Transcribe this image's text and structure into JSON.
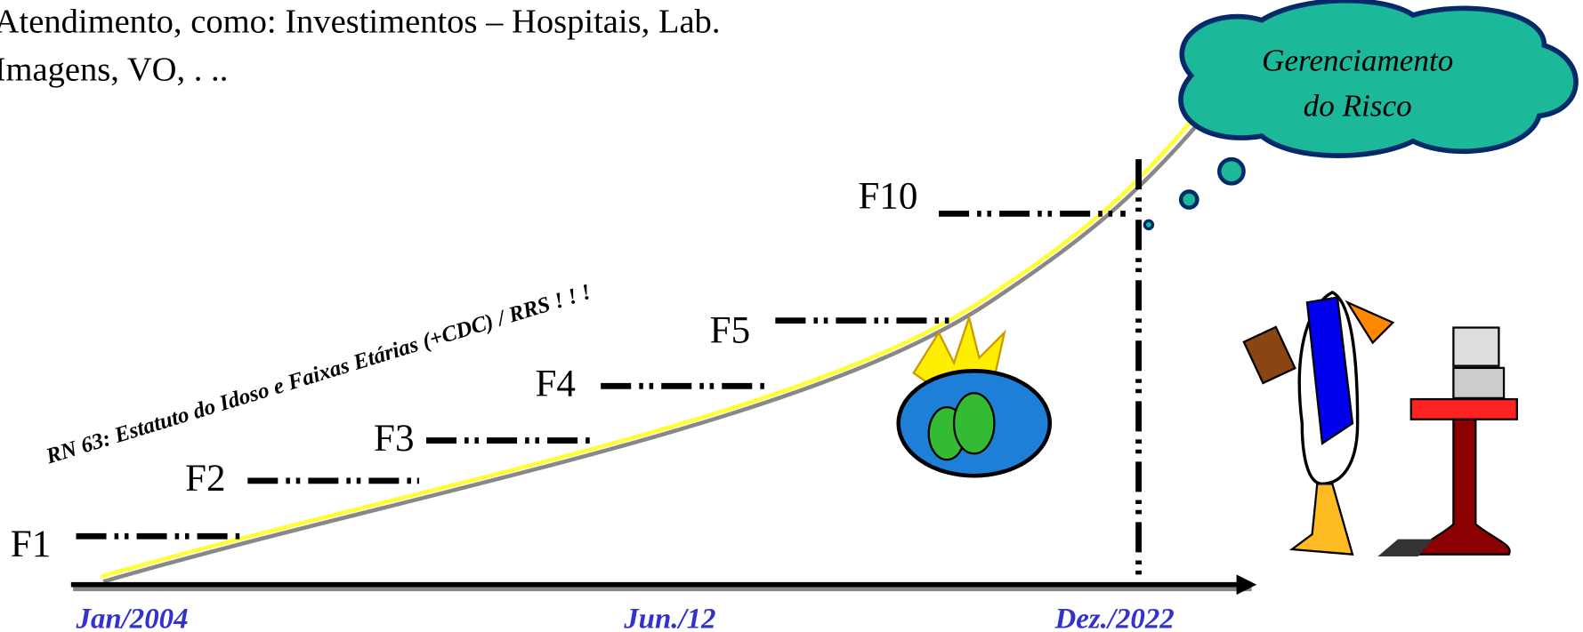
{
  "header": {
    "lines": [
      "Atendimento, como: Investimentos – Hospitais, Lab.",
      "Imagens, VO,  . .."
    ]
  },
  "steps": [
    "F1",
    "F2",
    "F3",
    "F4",
    "F5",
    "F10"
  ],
  "axis": {
    "labels": [
      "Jan/2004",
      "Jun./12",
      "Dez./2022"
    ]
  },
  "annotation": "RN 63: Estatuto do Idoso e Faixas Etárias (+CDC) / RRS ! ! !",
  "callout": {
    "lines": [
      "Gerenciamento",
      "do Risco"
    ]
  }
}
